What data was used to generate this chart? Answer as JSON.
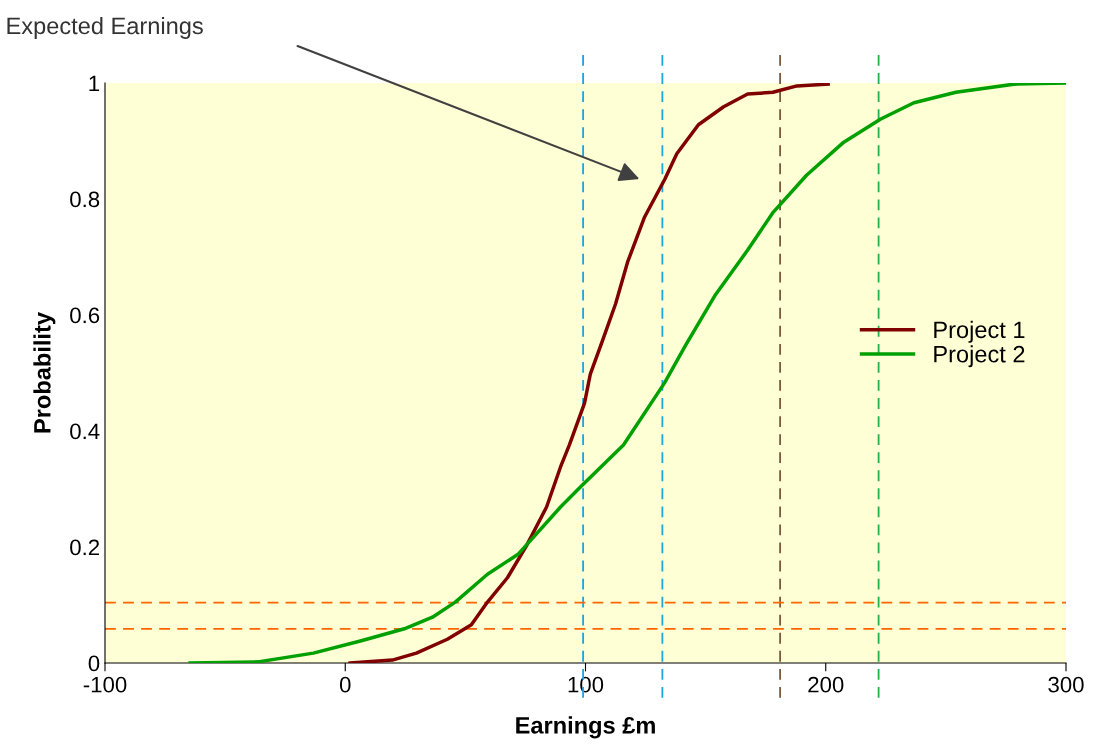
{
  "chart_data": {
    "type": "line",
    "xlabel": "Earnings £m",
    "ylabel": "Probability",
    "annotations": [
      "Expected Earnings"
    ],
    "series": [
      {
        "name": "Project 1",
        "color": "#800000",
        "x": [
          2,
          19.6,
          29.6,
          42.5,
          52.5,
          59.2,
          67.5,
          75.4,
          83.8,
          89.6,
          93.3,
          99.6,
          102,
          107,
          112.5,
          117.5,
          124.6,
          133,
          138,
          147,
          157.5,
          167.5,
          178,
          188,
          201
        ],
        "values": [
          0,
          0.005,
          0.017,
          0.041,
          0.066,
          0.105,
          0.147,
          0.202,
          0.269,
          0.338,
          0.376,
          0.448,
          0.498,
          0.555,
          0.619,
          0.691,
          0.769,
          0.834,
          0.878,
          0.928,
          0.959,
          0.981,
          0.984,
          0.995,
          0.998
        ]
      },
      {
        "name": "Project 2",
        "color": "#00a000",
        "x": [
          -64.6,
          -36.3,
          -13.3,
          6.3,
          24.6,
          36.3,
          45.8,
          59.2,
          72.1,
          89.6,
          98.3,
          115.8,
          132.9,
          141.7,
          153.8,
          167.5,
          177.9,
          192,
          207.5,
          222.9,
          236.7,
          254.2,
          278.3,
          300
        ],
        "values": [
          0,
          0.002,
          0.017,
          0.038,
          0.059,
          0.079,
          0.105,
          0.153,
          0.188,
          0.269,
          0.305,
          0.376,
          0.483,
          0.548,
          0.633,
          0.712,
          0.776,
          0.841,
          0.898,
          0.938,
          0.966,
          0.984,
          0.998,
          1.0
        ]
      }
    ],
    "ref_lines": [
      {
        "axis": "x",
        "value": 99,
        "color": "#1aa7e0",
        "line_style": "dashed"
      },
      {
        "axis": "x",
        "value": 132,
        "color": "#1aa7e0",
        "line_style": "dashed"
      },
      {
        "axis": "x",
        "value": 181,
        "color": "#7b5a3c",
        "line_style": "dashed"
      },
      {
        "axis": "x",
        "value": 222,
        "color": "#22b14c",
        "line_style": "dashed"
      },
      {
        "axis": "y",
        "value": 0.104,
        "color": "#ff6600",
        "line_style": "dashed"
      },
      {
        "axis": "y",
        "value": 0.059,
        "color": "#ff6600",
        "line_style": "dashed"
      }
    ],
    "xlim": [
      -100,
      300
    ],
    "xticks": [
      -100,
      0,
      100,
      200,
      300
    ],
    "ylim": [
      0,
      1
    ],
    "yticks": [
      0,
      0.2,
      0.4,
      0.6,
      0.8,
      1
    ],
    "grid": false,
    "legend": "right",
    "marker": "none",
    "line_style": "solid"
  }
}
